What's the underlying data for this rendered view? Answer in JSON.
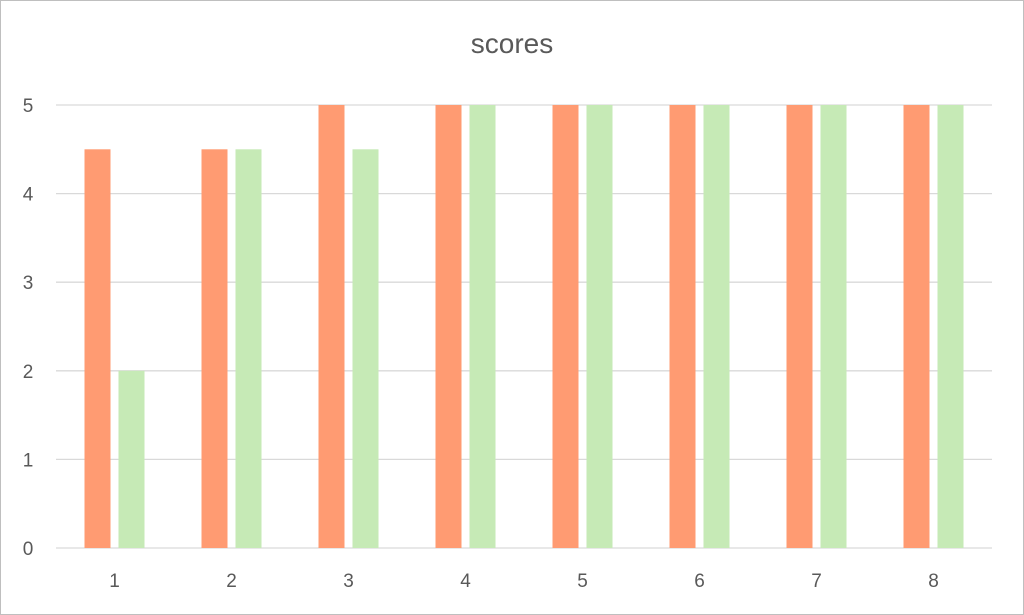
{
  "chart_data": {
    "type": "bar",
    "title": "scores",
    "xlabel": "",
    "ylabel": "",
    "categories": [
      "1",
      "2",
      "3",
      "4",
      "5",
      "6",
      "7",
      "8"
    ],
    "series": [
      {
        "values": [
          4.5,
          4.5,
          5,
          5,
          5,
          5,
          5,
          5
        ],
        "color": "#ff9b72"
      },
      {
        "values": [
          2,
          4.5,
          4.5,
          5,
          5,
          5,
          5,
          5
        ],
        "color": "#c6eab6"
      }
    ],
    "ylim": [
      0,
      5
    ],
    "yticks": [
      "0",
      "1",
      "2",
      "3",
      "4",
      "5"
    ],
    "grid": true,
    "gridColor": "#d9d9d9",
    "legend": "none"
  }
}
